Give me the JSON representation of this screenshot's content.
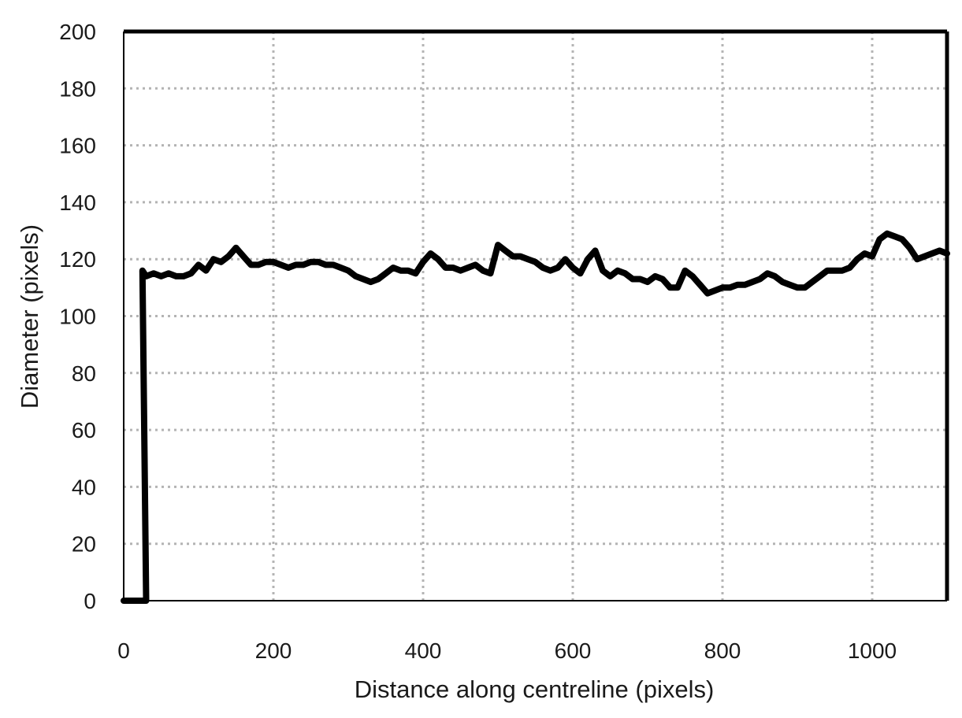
{
  "chart_data": {
    "type": "line",
    "title": "",
    "xlabel": "Distance along centreline (pixels)",
    "ylabel": "Diameter (pixels)",
    "xlim": [
      0,
      1100
    ],
    "ylim": [
      0,
      200
    ],
    "xticks": [
      0,
      200,
      400,
      600,
      800,
      1000
    ],
    "yticks": [
      0,
      20,
      40,
      60,
      80,
      100,
      120,
      140,
      160,
      180,
      200
    ],
    "grid": true,
    "legend": "none",
    "series_color": "#000000",
    "series": [
      {
        "x": [
          0,
          30,
          25,
          30,
          40,
          50,
          60,
          70,
          80,
          90,
          100,
          110,
          120,
          130,
          140,
          150,
          160,
          170,
          180,
          190,
          200,
          210,
          220,
          230,
          240,
          250,
          260,
          270,
          280,
          290,
          300,
          310,
          320,
          330,
          340,
          350,
          360,
          370,
          380,
          390,
          400,
          410,
          420,
          430,
          440,
          450,
          460,
          470,
          480,
          490,
          500,
          510,
          520,
          530,
          540,
          550,
          560,
          570,
          580,
          590,
          600,
          610,
          620,
          630,
          640,
          650,
          660,
          670,
          680,
          690,
          700,
          710,
          720,
          730,
          740,
          750,
          760,
          770,
          780,
          790,
          800,
          810,
          820,
          830,
          840,
          850,
          860,
          870,
          880,
          890,
          900,
          910,
          920,
          930,
          940,
          950,
          960,
          970,
          980,
          990,
          1000,
          1010,
          1020,
          1030,
          1040,
          1050,
          1060,
          1070,
          1080,
          1090,
          1100
        ],
        "y": [
          0,
          0,
          116,
          114,
          115,
          114,
          115,
          114,
          114,
          115,
          118,
          116,
          120,
          119,
          121,
          124,
          121,
          118,
          118,
          119,
          119,
          118,
          117,
          118,
          118,
          119,
          119,
          118,
          118,
          117,
          116,
          114,
          113,
          112,
          113,
          115,
          117,
          116,
          116,
          115,
          119,
          122,
          120,
          117,
          117,
          116,
          117,
          118,
          116,
          115,
          125,
          123,
          121,
          121,
          120,
          119,
          117,
          116,
          117,
          120,
          117,
          115,
          120,
          123,
          116,
          114,
          116,
          115,
          113,
          113,
          112,
          114,
          113,
          110,
          110,
          116,
          114,
          111,
          108,
          109,
          110,
          110,
          111,
          111,
          112,
          113,
          115,
          114,
          112,
          111,
          110,
          110,
          112,
          114,
          116,
          116,
          116,
          117,
          120,
          122,
          121,
          127,
          129,
          128,
          127,
          124,
          120,
          121,
          122,
          123,
          122
        ]
      }
    ]
  }
}
